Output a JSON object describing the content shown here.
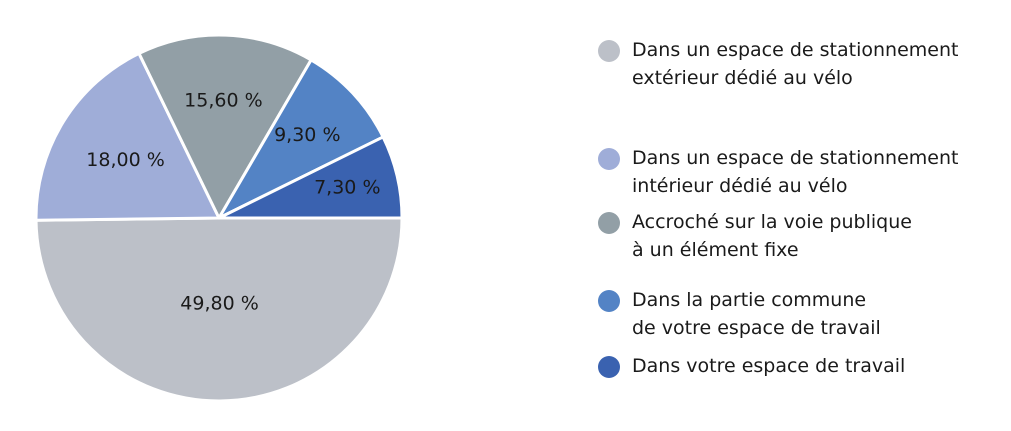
{
  "chart_data": {
    "type": "pie",
    "title": "",
    "slices": [
      {
        "name": "Dans un espace de stationnement\nextérieur dédié au vélo",
        "value": 49.8,
        "label": "49,80 %",
        "color": "#bcc0c8"
      },
      {
        "name": "Dans un espace de stationnement\nintérieur dédié au vélo",
        "value": 18.0,
        "label": "18,00 %",
        "color": "#9fadd8"
      },
      {
        "name": "Accroché sur la voie publique\nà un élément fixe",
        "value": 15.6,
        "label": "15,60 %",
        "color": "#929fa6"
      },
      {
        "name": "Dans la partie commune\nde votre espace de travail",
        "value": 9.3,
        "label": "9,30 %",
        "color": "#5383c5"
      },
      {
        "name": "Dans votre espace de travail",
        "value": 7.3,
        "label": "7,30 %",
        "color": "#3a62b0"
      }
    ],
    "legend_position": "right"
  }
}
